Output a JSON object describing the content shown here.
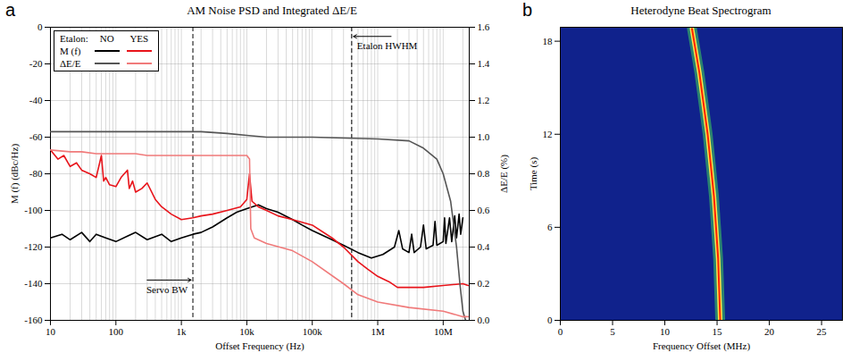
{
  "chart_data": [
    {
      "label": "a",
      "type": "line",
      "title": "AM Noise PSD and Integrated ΔE/E",
      "x_label": "Offset Frequency (Hz)",
      "y_label": "M (f) (dBc/Hz)",
      "y2_label": "ΔE/E (%)",
      "log": "x",
      "grid": true,
      "legend": "top-left",
      "legend_title": "Etalon:",
      "xlim": [
        10,
        25000000
      ],
      "xticks": [
        10,
        100,
        {
          "value": 1000,
          "label": "1k"
        },
        {
          "value": 10000,
          "label": "10k"
        },
        {
          "value": 100000,
          "label": "100k"
        },
        {
          "value": 1000000,
          "label": "1M"
        },
        {
          "value": 10000000,
          "label": "10M"
        }
      ],
      "ylim": [
        -160,
        0
      ],
      "yticks": [
        -160,
        -140,
        -120,
        -100,
        -80,
        -60,
        -40,
        -20,
        0
      ],
      "y2lim": [
        0,
        1.6
      ],
      "y2ticks": [
        {
          "value": 0,
          "label": "0.0"
        },
        0.2,
        0.4,
        0.6,
        0.8,
        {
          "value": 1,
          "label": "1.0"
        },
        1.2,
        1.4,
        1.6
      ],
      "series": [
        {
          "name": "M (f)",
          "etalon": "NO",
          "color": "#000000",
          "x": [
            10,
            15,
            20,
            30,
            40,
            50,
            70,
            100,
            150,
            200,
            300,
            500,
            700,
            1000,
            1500,
            2000,
            3000,
            5000,
            7000,
            10000,
            15000,
            20000,
            30000,
            50000,
            70000,
            100000,
            200000,
            300000,
            500000,
            800000,
            1200000,
            1800000,
            2100000,
            2400000,
            3000000,
            3300000,
            3600000,
            4500000,
            5000000,
            5500000,
            7000000,
            7500000,
            8000000,
            10000000,
            10500000,
            11000000,
            12500000,
            13500000,
            15000000,
            16000000,
            17500000,
            18500000,
            20000000
          ],
          "values": [
            -115,
            -113,
            -116,
            -112,
            -117,
            -113,
            -115,
            -117,
            -114,
            -112,
            -116,
            -113,
            -117,
            -115,
            -113,
            -112,
            -109,
            -104,
            -101,
            -99,
            -97,
            -99,
            -101,
            -105,
            -108,
            -111,
            -116,
            -119,
            -123,
            -126,
            -124,
            -120,
            -111,
            -121,
            -123,
            -113,
            -123,
            -120,
            -108,
            -121,
            -119,
            -106,
            -119,
            -117,
            -104,
            -118,
            -104,
            -117,
            -103,
            -115,
            -102,
            -113,
            -104
          ]
        },
        {
          "name": "M (f)",
          "etalon": "YES",
          "color": "#e8141b",
          "x": [
            10,
            13,
            16,
            20,
            25,
            30,
            40,
            50,
            60,
            65,
            70,
            80,
            100,
            120,
            150,
            160,
            180,
            200,
            250,
            300,
            400,
            500,
            700,
            1000,
            1500,
            2000,
            3000,
            5000,
            8000,
            10000,
            11000,
            12000,
            15000,
            20000,
            30000,
            50000,
            100000,
            200000,
            300000,
            500000,
            700000,
            1000000,
            1500000,
            2000000,
            5000000,
            10000000,
            20000000,
            24000000
          ],
          "values": [
            -67,
            -72,
            -70,
            -76,
            -74,
            -78,
            -80,
            -82,
            -70,
            -84,
            -82,
            -86,
            -87,
            -82,
            -78,
            -88,
            -84,
            -90,
            -88,
            -85,
            -94,
            -98,
            -102,
            -105,
            -104,
            -103,
            -102,
            -100,
            -98,
            -94,
            -80,
            -95,
            -98,
            -100,
            -103,
            -105,
            -108,
            -115,
            -120,
            -128,
            -132,
            -136,
            -139,
            -142,
            -142,
            -141,
            -140,
            -141
          ]
        },
        {
          "name": "ΔE/E",
          "etalon": "NO",
          "color": "#555555",
          "axis": "y2",
          "x": [
            10,
            100,
            1000,
            2000,
            5000,
            10000,
            20000,
            50000,
            100000,
            1000000,
            3000000,
            5000000,
            8000000,
            10000000,
            13000000,
            16000000,
            18000000,
            20000000,
            22000000
          ],
          "values": [
            1.03,
            1.03,
            1.03,
            1.03,
            1.02,
            1.01,
            1.0,
            1.0,
            1.0,
            0.99,
            0.98,
            0.94,
            0.88,
            0.8,
            0.65,
            0.4,
            0.2,
            0.05,
            0.0
          ]
        },
        {
          "name": "ΔE/E",
          "etalon": "YES",
          "color": "#f07a7a",
          "axis": "y2",
          "x": [
            10,
            20,
            30,
            50,
            100,
            200,
            300,
            1000,
            3000,
            5000,
            10000,
            11000,
            11500,
            13000,
            20000,
            50000,
            100000,
            300000,
            500000,
            1000000,
            3000000,
            10000000,
            20000000,
            24000000
          ],
          "values": [
            0.93,
            0.92,
            0.92,
            0.91,
            0.91,
            0.91,
            0.9,
            0.9,
            0.9,
            0.9,
            0.9,
            0.88,
            0.5,
            0.45,
            0.42,
            0.38,
            0.32,
            0.2,
            0.14,
            0.1,
            0.07,
            0.05,
            0.02,
            0.02
          ]
        }
      ],
      "vlines": [
        {
          "x": 1500,
          "label": "Servo BW",
          "y": -138
        },
        {
          "x": 400000,
          "label": "Etalon HWHM",
          "y": -5
        }
      ]
    },
    {
      "label": "b",
      "type": "line",
      "title": "Heterodyne Beat Spectrogram",
      "x_label": "Frequency Offset (MHz)",
      "y_label": "Time (s)",
      "xlim": [
        0,
        27
      ],
      "xticks": [
        0,
        5,
        10,
        15,
        20,
        25
      ],
      "ylim": [
        0,
        18.9
      ],
      "yticks": [
        0,
        6,
        12,
        18
      ],
      "series": [
        {
          "color": "#ff2000",
          "x": [
            15.3,
            15.2,
            15.1,
            14.9,
            14.7,
            14.4,
            14.1,
            13.7,
            13.3,
            12.8,
            12.6
          ],
          "values": [
            0,
            2,
            4,
            6,
            8,
            10,
            12,
            14,
            16,
            18,
            18.8
          ]
        }
      ]
    }
  ]
}
